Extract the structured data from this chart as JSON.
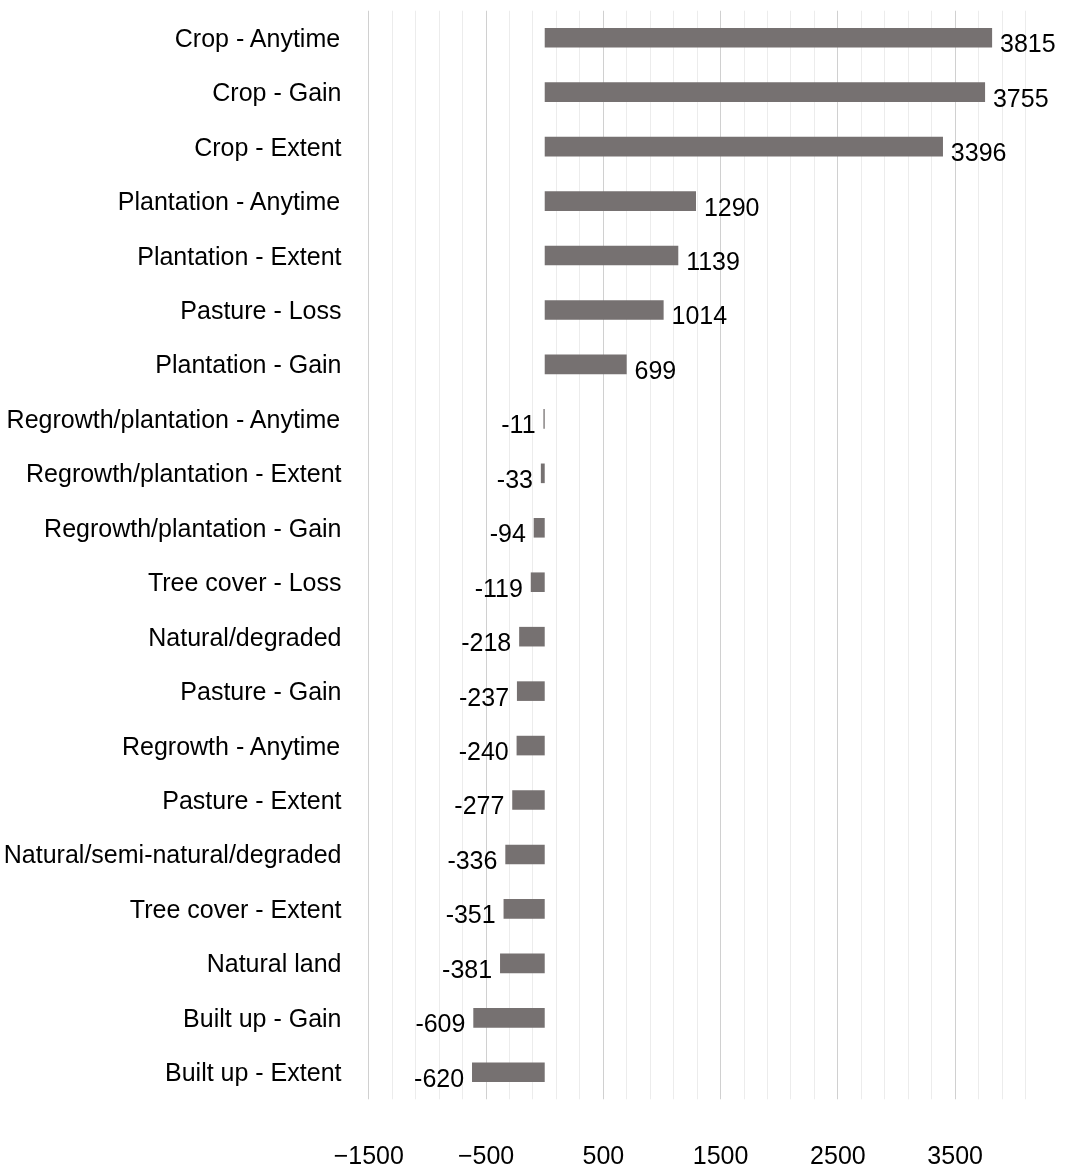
{
  "chart_data": {
    "type": "bar",
    "orientation": "horizontal",
    "categories": [
      "Crop - Anytime",
      "Crop - Gain",
      "Crop - Extent",
      "Plantation - Anytime",
      "Plantation - Extent",
      "Pasture - Loss",
      "Plantation - Gain",
      "Regrowth/plantation - Anytime",
      "Regrowth/plantation - Extent",
      "Regrowth/plantation - Gain",
      "Tree cover - Loss",
      "Natural/degraded",
      "Pasture - Gain",
      "Regrowth - Anytime",
      "Pasture - Extent",
      "Natural/semi-natural/degraded",
      "Tree cover - Extent",
      "Natural land",
      "Built up - Gain",
      "Built up - Extent"
    ],
    "values": [
      3815,
      3755,
      3396,
      1290,
      1139,
      1014,
      699,
      -11,
      -33,
      -94,
      -119,
      -218,
      -237,
      -240,
      -277,
      -336,
      -351,
      -381,
      -609,
      -620
    ],
    "color": "#767171",
    "data_labels": true,
    "grid": "x",
    "xlim": [
      -1500,
      4100
    ],
    "xticks": [
      -1500,
      {
        "value": -1300,
        "label": null
      },
      {
        "value": -1100,
        "label": null
      },
      {
        "value": -900,
        "label": null
      },
      {
        "value": -700,
        "label": null
      },
      -500,
      {
        "value": -300,
        "label": null
      },
      {
        "value": -100,
        "label": null
      },
      {
        "value": 100,
        "label": null
      },
      {
        "value": 300,
        "label": null
      },
      500,
      {
        "value": 700,
        "label": null
      },
      {
        "value": 900,
        "label": null
      },
      {
        "value": 1100,
        "label": null
      },
      {
        "value": 1300,
        "label": null
      },
      1500,
      {
        "value": 1700,
        "label": null
      },
      {
        "value": 1900,
        "label": null
      },
      {
        "value": 2100,
        "label": null
      },
      {
        "value": 2300,
        "label": null
      },
      2500,
      {
        "value": 2700,
        "label": null
      },
      {
        "value": 2900,
        "label": null
      },
      {
        "value": 3100,
        "label": null
      },
      {
        "value": 3300,
        "label": null
      },
      3500,
      {
        "value": 3700,
        "label": null
      },
      {
        "value": 3900,
        "label": null
      },
      {
        "value": 4100,
        "label": null
      }
    ]
  }
}
